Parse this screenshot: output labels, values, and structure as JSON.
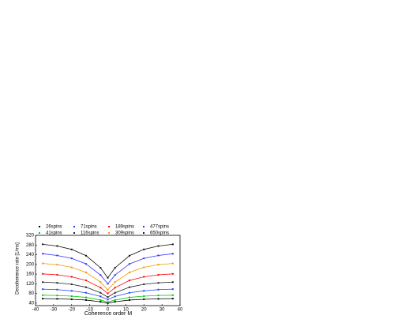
{
  "chart_data": {
    "type": "line",
    "x_label": "Coherence order M",
    "y_label": "Decoherence rate [1/ms]",
    "x": [
      -36,
      -28,
      -20,
      -12,
      -4,
      0,
      4,
      12,
      20,
      28,
      36
    ],
    "xlim": [
      -40,
      40
    ],
    "xticks": [
      -40,
      -30,
      -20,
      -10,
      0,
      10,
      20,
      30,
      40
    ],
    "ylim": [
      30,
      320
    ],
    "yticks": [
      40,
      80,
      120,
      160,
      200,
      240,
      280,
      320
    ],
    "series": [
      {
        "name": "26spins",
        "color": "#000000",
        "values": [
          59,
          58,
          56,
          53,
          46,
          40,
          46,
          53,
          56,
          58,
          59
        ]
      },
      {
        "name": "71spins",
        "color": "#1f3fff",
        "values": [
          98,
          96,
          91,
          83,
          68,
          55,
          68,
          83,
          91,
          96,
          98
        ]
      },
      {
        "name": "189spins",
        "color": "#ff0000",
        "values": [
          161,
          157,
          149,
          134,
          104,
          80,
          104,
          134,
          149,
          157,
          161
        ]
      },
      {
        "name": "477spins",
        "color": "#3030ff",
        "values": [
          244,
          237,
          225,
          202,
          156,
          120,
          156,
          202,
          225,
          237,
          244
        ]
      },
      {
        "name": "41spins",
        "color": "#00cc00",
        "values": [
          73,
          72,
          69,
          64,
          53,
          45,
          53,
          64,
          69,
          72,
          73
        ]
      },
      {
        "name": "116spins",
        "color": "#222222",
        "values": [
          127,
          124,
          118,
          106,
          83,
          65,
          83,
          106,
          118,
          124,
          127
        ]
      },
      {
        "name": "309spins",
        "color": "#ee9900",
        "values": [
          204,
          199,
          188,
          167,
          127,
          95,
          127,
          167,
          188,
          199,
          204
        ]
      },
      {
        "name": "650spins",
        "color": "#111111",
        "values": [
          283,
          276,
          262,
          236,
          186,
          145,
          186,
          236,
          262,
          276,
          283
        ]
      }
    ]
  }
}
